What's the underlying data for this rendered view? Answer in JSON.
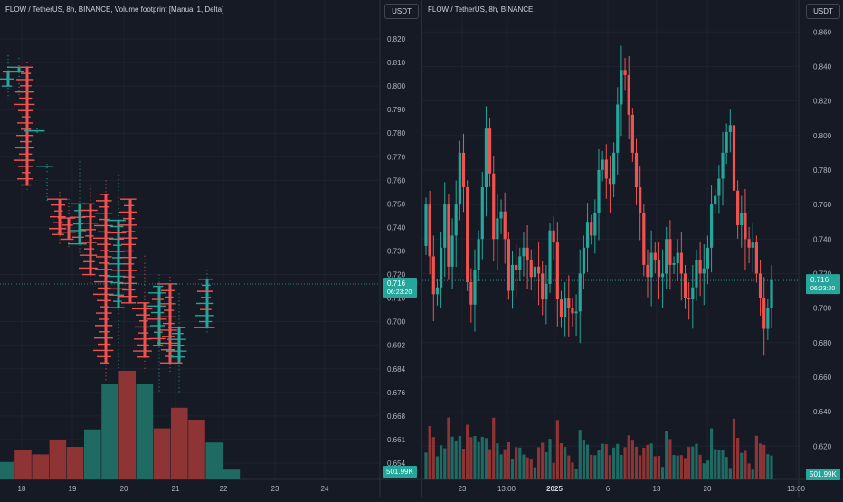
{
  "left": {
    "title": "FLOW / TetherUS, 8h, BINANCE, Volume footprint [Manual 1, Delta]",
    "currency_button": "USDT",
    "price_badge": "0.716",
    "timer_badge": "06:23:20",
    "volume_badge": "501.99K"
  },
  "right": {
    "title": "FLOW / TetherUS, 8h, BINANCE",
    "currency_button": "USDT",
    "price_badge": "0.716",
    "timer_badge": "06:23:20",
    "volume_badge": "501.99K"
  },
  "colors": {
    "up": "#26a69a",
    "down": "#ef5350",
    "up_dim": "#1f6b64",
    "down_dim": "#8f3434"
  },
  "chart_data": [
    {
      "type": "footprint",
      "y_ticks": [
        "0.820",
        "0.810",
        "0.800",
        "0.790",
        "0.780",
        "0.770",
        "0.760",
        "0.750",
        "0.740",
        "0.730",
        "0.720",
        "0.710",
        "0.700",
        "0.692",
        "0.684",
        "0.676",
        "0.668",
        "0.661",
        "0.654"
      ],
      "x_ticks": [
        "18",
        "19",
        "20",
        "21",
        "22",
        "23",
        "24"
      ],
      "last_price": 0.716,
      "candles": [
        {
          "o": 0.8,
          "h": 0.813,
          "l": 0.793,
          "c": 0.806
        },
        {
          "o": 0.806,
          "h": 0.812,
          "l": 0.796,
          "c": 0.808
        },
        {
          "o": 0.808,
          "h": 0.81,
          "l": 0.756,
          "c": 0.758
        },
        {
          "o": 0.781,
          "h": 0.782,
          "l": 0.78,
          "c": 0.781
        },
        {
          "o": 0.766,
          "h": 0.767,
          "l": 0.75,
          "c": 0.766
        },
        {
          "o": 0.752,
          "h": 0.755,
          "l": 0.733,
          "c": 0.737
        },
        {
          "o": 0.744,
          "h": 0.752,
          "l": 0.731,
          "c": 0.735
        },
        {
          "o": 0.733,
          "h": 0.768,
          "l": 0.728,
          "c": 0.75
        },
        {
          "o": 0.75,
          "h": 0.758,
          "l": 0.715,
          "c": 0.72
        },
        {
          "o": 0.754,
          "h": 0.76,
          "l": 0.68,
          "c": 0.686
        },
        {
          "o": 0.706,
          "h": 0.762,
          "l": 0.684,
          "c": 0.743
        },
        {
          "o": 0.752,
          "h": 0.752,
          "l": 0.708,
          "c": 0.708
        },
        {
          "o": 0.708,
          "h": 0.728,
          "l": 0.683,
          "c": 0.688
        },
        {
          "o": 0.692,
          "h": 0.72,
          "l": 0.676,
          "c": 0.715
        },
        {
          "o": 0.716,
          "h": 0.719,
          "l": 0.683,
          "c": 0.686
        },
        {
          "o": 0.686,
          "h": 0.712,
          "l": 0.676,
          "c": 0.698
        },
        {
          "o": 0.698,
          "h": 0.722,
          "l": 0.696,
          "c": 0.718
        }
      ],
      "volume_profile": [
        {
          "v": 0.16,
          "dir": "up"
        },
        {
          "v": 0.27,
          "dir": "down"
        },
        {
          "v": 0.23,
          "dir": "down"
        },
        {
          "v": 0.36,
          "dir": "down"
        },
        {
          "v": 0.3,
          "dir": "down"
        },
        {
          "v": 0.46,
          "dir": "up"
        },
        {
          "v": 0.88,
          "dir": "up"
        },
        {
          "v": 1.0,
          "dir": "down"
        },
        {
          "v": 0.88,
          "dir": "up"
        },
        {
          "v": 0.47,
          "dir": "down"
        },
        {
          "v": 0.66,
          "dir": "down"
        },
        {
          "v": 0.55,
          "dir": "down"
        },
        {
          "v": 0.34,
          "dir": "up"
        },
        {
          "v": 0.09,
          "dir": "up"
        }
      ],
      "volume_last": "501.99K"
    },
    {
      "type": "candlestick",
      "y_ticks": [
        "0.860",
        "0.840",
        "0.820",
        "0.800",
        "0.780",
        "0.760",
        "0.740",
        "0.720",
        "0.700",
        "0.680",
        "0.660",
        "0.640",
        "0.620"
      ],
      "y_range": [
        0.606,
        0.868
      ],
      "x_ticks": [
        "23",
        "13:00",
        "2025",
        "6",
        "13",
        "20",
        "13:00"
      ],
      "last_price": 0.716,
      "closes": [
        0.76,
        0.73,
        0.708,
        0.712,
        0.735,
        0.76,
        0.724,
        0.742,
        0.76,
        0.79,
        0.77,
        0.715,
        0.702,
        0.722,
        0.74,
        0.77,
        0.804,
        0.778,
        0.74,
        0.752,
        0.756,
        0.74,
        0.71,
        0.725,
        0.722,
        0.73,
        0.735,
        0.728,
        0.718,
        0.724,
        0.72,
        0.705,
        0.714,
        0.745,
        0.738,
        0.705,
        0.695,
        0.706,
        0.7,
        0.697,
        0.698,
        0.72,
        0.735,
        0.75,
        0.742,
        0.755,
        0.78,
        0.786,
        0.775,
        0.772,
        0.79,
        0.818,
        0.838,
        0.835,
        0.812,
        0.79,
        0.77,
        0.755,
        0.725,
        0.718,
        0.732,
        0.728,
        0.718,
        0.72,
        0.74,
        0.725,
        0.726,
        0.732,
        0.72,
        0.706,
        0.705,
        0.712,
        0.728,
        0.72,
        0.723,
        0.735,
        0.76,
        0.765,
        0.775,
        0.79,
        0.802,
        0.806,
        0.768,
        0.748,
        0.755,
        0.74,
        0.735,
        0.738,
        0.72,
        0.706,
        0.688,
        0.7,
        0.716
      ]
    }
  ]
}
